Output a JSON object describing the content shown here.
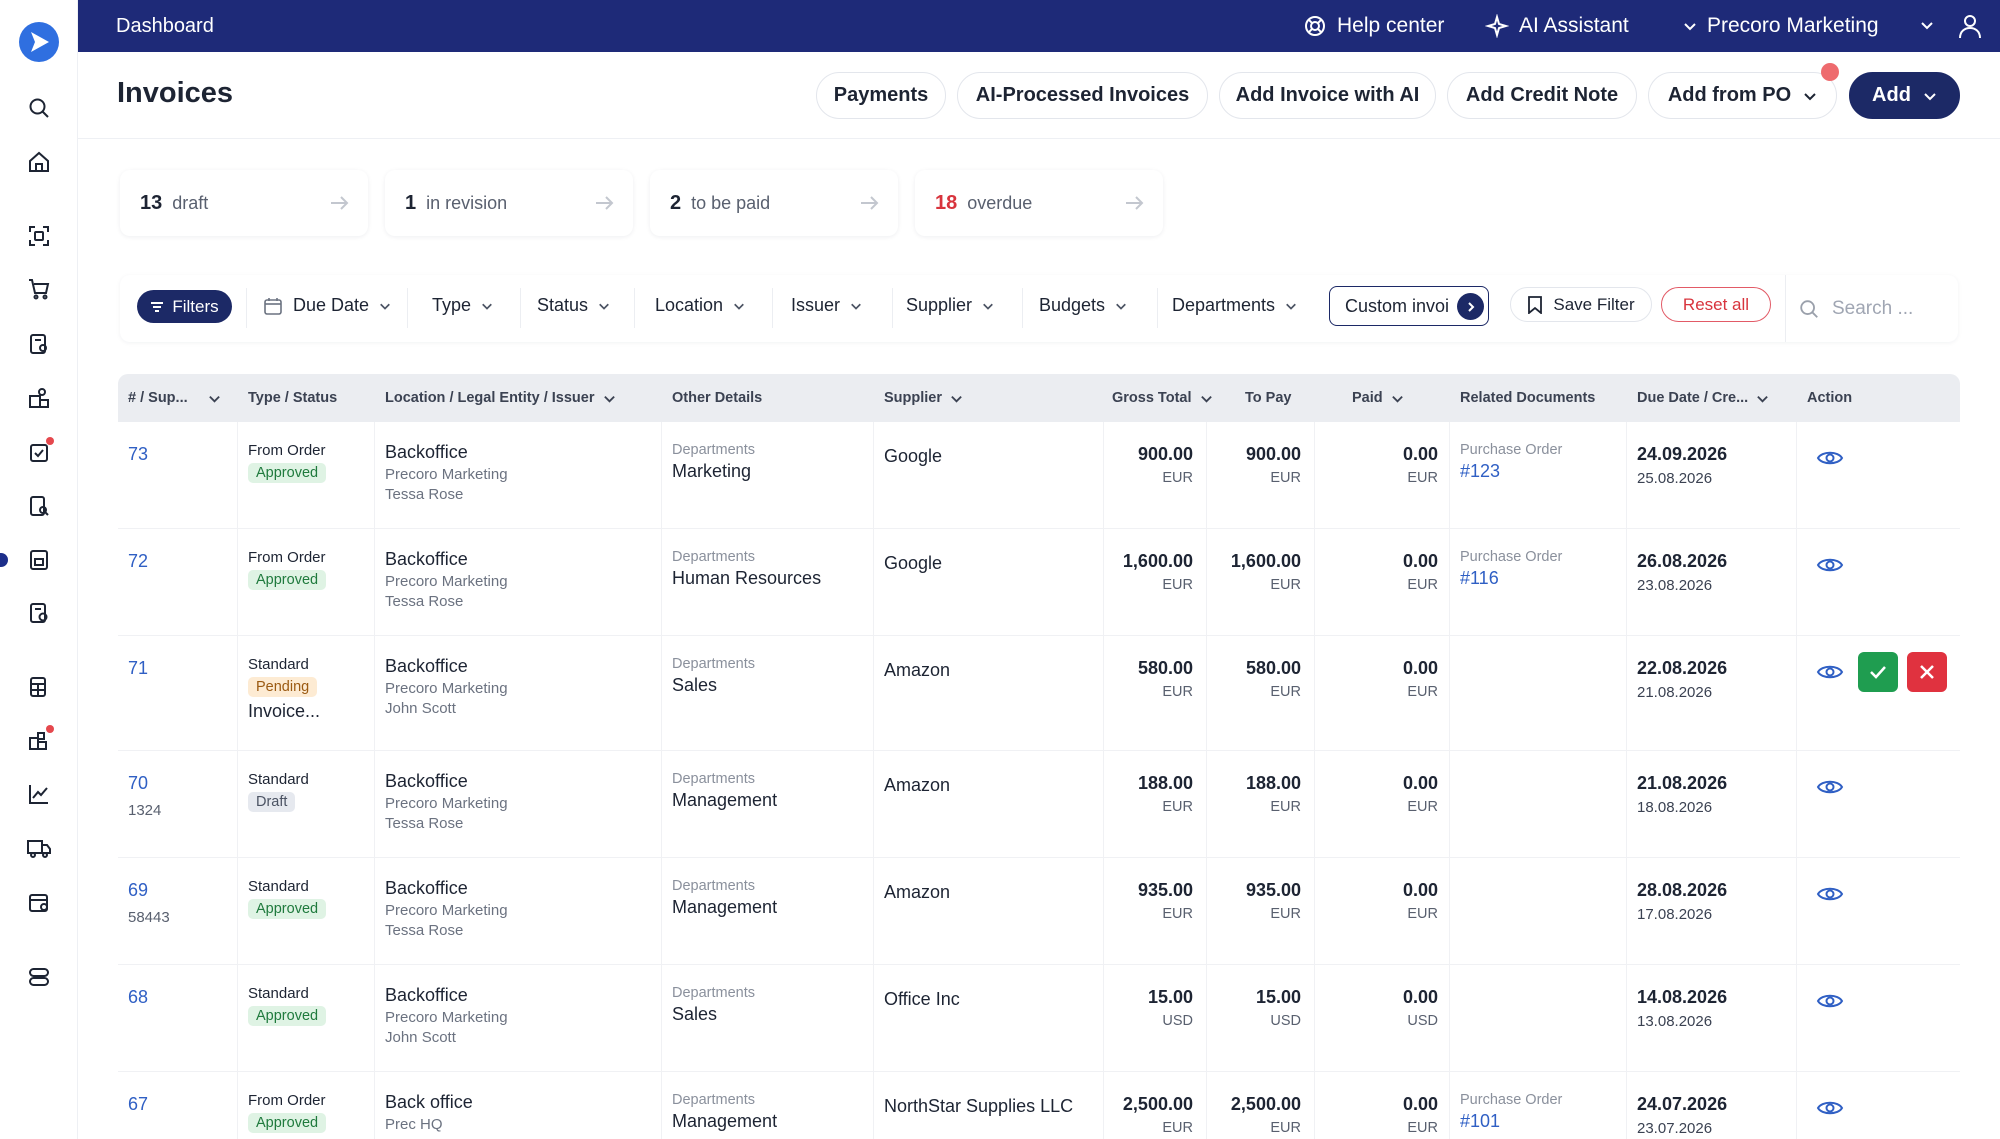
{
  "topbar": {
    "title": "Dashboard",
    "help_center": "Help center",
    "ai_assistant": "AI Assistant",
    "company": "Precoro Marketing"
  },
  "sidebar": {
    "icons": [
      "logo-icon",
      "search-icon",
      "home-icon",
      "scan-document-icon",
      "cart-icon",
      "invoice-settings-icon",
      "inventory-icon",
      "approval-icon",
      "document-search-icon",
      "invoice-icon",
      "receipt-icon",
      "spreadsheet-icon",
      "budget-icon",
      "analytics-icon",
      "delivery-truck-icon",
      "calendar-icon",
      "server-icon"
    ]
  },
  "header": {
    "page_title": "Invoices",
    "buttons": {
      "payments": "Payments",
      "ai_processed": "AI-Processed Invoices",
      "add_with_ai": "Add Invoice with AI",
      "add_credit_note": "Add Credit Note",
      "add_from_po": "Add from PO",
      "add": "Add"
    }
  },
  "summary": [
    {
      "count": "13",
      "label": "draft",
      "color": "#1d2433"
    },
    {
      "count": "1",
      "label": "in revision",
      "color": "#1d2433"
    },
    {
      "count": "2",
      "label": "to be paid",
      "color": "#1d2433"
    },
    {
      "count": "18",
      "label": "overdue",
      "color": "#d8343d"
    }
  ],
  "filters": {
    "filters_label": "Filters",
    "due_date": "Due Date",
    "type": "Type",
    "status": "Status",
    "location": "Location",
    "issuer": "Issuer",
    "supplier": "Supplier",
    "budgets": "Budgets",
    "departments": "Departments",
    "custom": "Custom invoi",
    "save_filter": "Save Filter",
    "reset_all": "Reset all",
    "search_placeholder": "Search ..."
  },
  "table": {
    "headers": {
      "num": "# / Sup...",
      "type": "Type / Status",
      "location": "Location / Legal Entity / Issuer",
      "other": "Other Details",
      "supplier": "Supplier",
      "gross": "Gross Total",
      "topay": "To Pay",
      "paid": "Paid",
      "related": "Related Documents",
      "due": "Due Date / Cre...",
      "action": "Action"
    },
    "rows": [
      {
        "num": "73",
        "sub": "",
        "type": "From Order",
        "status": "Approved",
        "extra": "",
        "loc": "Backoffice",
        "entity": "Precoro Marketing",
        "issuer": "Tessa Rose",
        "other_label": "Departments",
        "other_value": "Marketing",
        "supplier": "Google",
        "gross": "900.00",
        "gross_cur": "EUR",
        "topay": "900.00",
        "topay_cur": "EUR",
        "paid": "0.00",
        "paid_cur": "EUR",
        "rel_label": "Purchase Order",
        "rel_link": "#123",
        "due": "24.09.2026",
        "created": "25.08.2026"
      },
      {
        "num": "72",
        "sub": "",
        "type": "From Order",
        "status": "Approved",
        "extra": "",
        "loc": "Backoffice",
        "entity": "Precoro Marketing",
        "issuer": "Tessa Rose",
        "other_label": "Departments",
        "other_value": "Human Resources",
        "supplier": "Google",
        "gross": "1,600.00",
        "gross_cur": "EUR",
        "topay": "1,600.00",
        "topay_cur": "EUR",
        "paid": "0.00",
        "paid_cur": "EUR",
        "rel_label": "Purchase Order",
        "rel_link": "#116",
        "due": "26.08.2026",
        "created": "23.08.2026"
      },
      {
        "num": "71",
        "sub": "",
        "type": "Standard",
        "status": "Pending",
        "extra": "Invoice...",
        "loc": "Backoffice",
        "entity": "Precoro Marketing",
        "issuer": "John Scott",
        "other_label": "Departments",
        "other_value": "Sales",
        "supplier": "Amazon",
        "gross": "580.00",
        "gross_cur": "EUR",
        "topay": "580.00",
        "topay_cur": "EUR",
        "paid": "0.00",
        "paid_cur": "EUR",
        "rel_label": "",
        "rel_link": "",
        "due": "22.08.2026",
        "created": "21.08.2026"
      },
      {
        "num": "70",
        "sub": "1324",
        "type": "Standard",
        "status": "Draft",
        "extra": "",
        "loc": "Backoffice",
        "entity": "Precoro Marketing",
        "issuer": "Tessa Rose",
        "other_label": "Departments",
        "other_value": "Management",
        "supplier": "Amazon",
        "gross": "188.00",
        "gross_cur": "EUR",
        "topay": "188.00",
        "topay_cur": "EUR",
        "paid": "0.00",
        "paid_cur": "EUR",
        "rel_label": "",
        "rel_link": "",
        "due": "21.08.2026",
        "created": "18.08.2026"
      },
      {
        "num": "69",
        "sub": "58443",
        "type": "Standard",
        "status": "Approved",
        "extra": "",
        "loc": "Backoffice",
        "entity": "Precoro Marketing",
        "issuer": "Tessa Rose",
        "other_label": "Departments",
        "other_value": "Management",
        "supplier": "Amazon",
        "gross": "935.00",
        "gross_cur": "EUR",
        "topay": "935.00",
        "topay_cur": "EUR",
        "paid": "0.00",
        "paid_cur": "EUR",
        "rel_label": "",
        "rel_link": "",
        "due": "28.08.2026",
        "created": "17.08.2026"
      },
      {
        "num": "68",
        "sub": "",
        "type": "Standard",
        "status": "Approved",
        "extra": "",
        "loc": "Backoffice",
        "entity": "Precoro Marketing",
        "issuer": "John Scott",
        "other_label": "Departments",
        "other_value": "Sales",
        "supplier": "Office Inc",
        "gross": "15.00",
        "gross_cur": "USD",
        "topay": "15.00",
        "topay_cur": "USD",
        "paid": "0.00",
        "paid_cur": "USD",
        "rel_label": "",
        "rel_link": "",
        "due": "14.08.2026",
        "created": "13.08.2026"
      },
      {
        "num": "67",
        "sub": "",
        "type": "From Order",
        "status": "Approved",
        "extra": "",
        "loc": "Back office",
        "entity": "Prec HQ",
        "issuer": "",
        "other_label": "Departments",
        "other_value": "Management",
        "supplier": "NorthStar Supplies LLC",
        "gross": "2,500.00",
        "gross_cur": "EUR",
        "topay": "2,500.00",
        "topay_cur": "EUR",
        "paid": "0.00",
        "paid_cur": "EUR",
        "rel_label": "Purchase Order",
        "rel_link": "#101",
        "due": "24.07.2026",
        "created": "23.07.2026"
      }
    ]
  },
  "colors": {
    "topbar": "#1e2a78",
    "primary": "#1c2966",
    "link": "#2f5fc4",
    "danger": "#d8343d",
    "approve": "#1f9d50"
  }
}
